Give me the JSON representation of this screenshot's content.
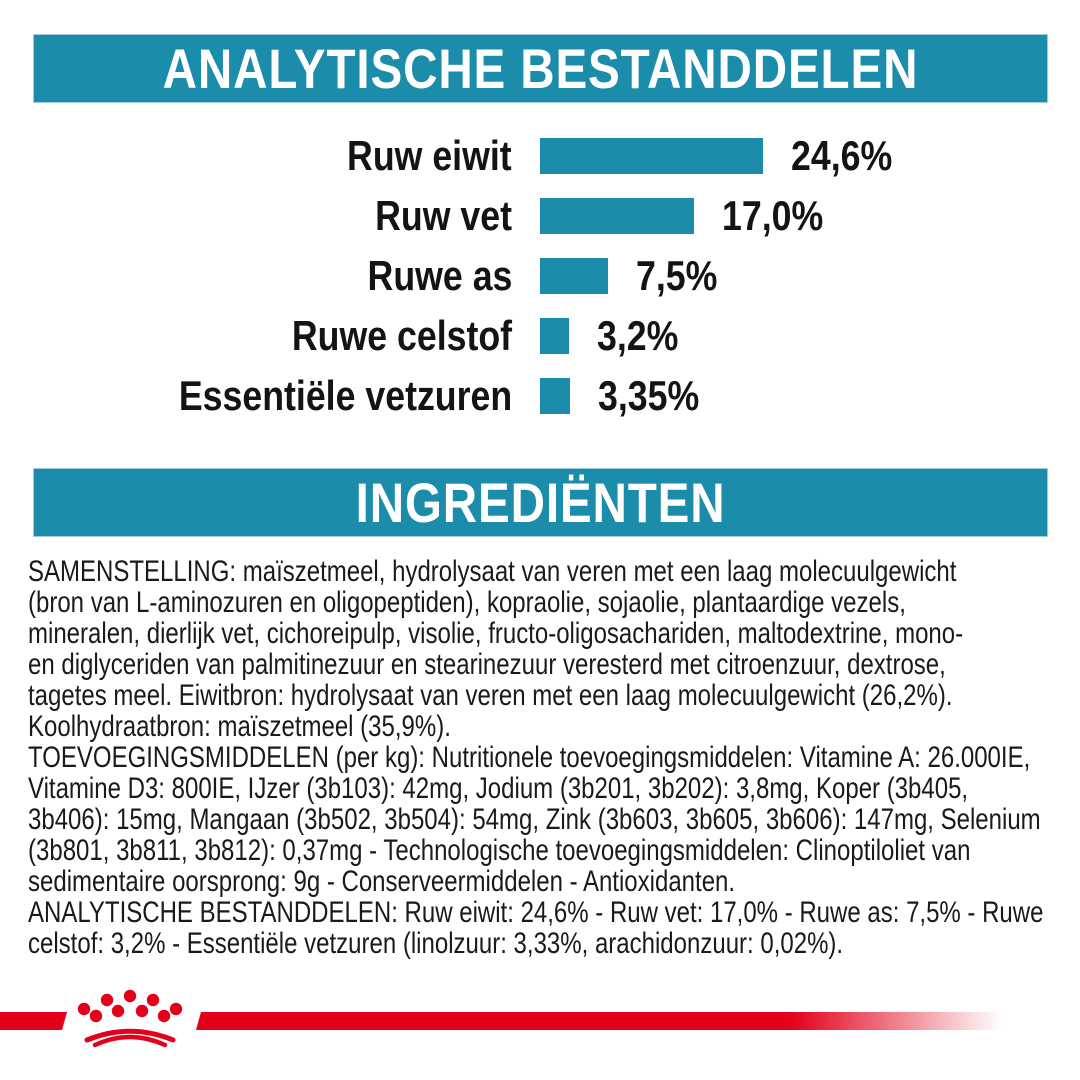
{
  "banners": {
    "analytical": "ANALYTISCHE BESTANDDELEN",
    "ingredients": "INGREDIËNTEN"
  },
  "chart_data": {
    "type": "bar",
    "orientation": "horizontal",
    "title": "ANALYTISCHE BESTANDDELEN",
    "categories": [
      "Ruw eiwit",
      "Ruw vet",
      "Ruwe as",
      "Ruwe celstof",
      "Essentiële vetzuren"
    ],
    "values": [
      24.6,
      17.0,
      7.5,
      3.2,
      3.35
    ],
    "value_labels": [
      "24,6%",
      "17,0%",
      "7,5%",
      "3,2%",
      "3,35%"
    ],
    "xlim": [
      0,
      25
    ],
    "grid": false,
    "bar_color": "#1b8caa"
  },
  "chart": {
    "rows": [
      {
        "label": "Ruw eiwit",
        "value": "24,6%",
        "pct": 24.6
      },
      {
        "label": "Ruw vet",
        "value": "17,0%",
        "pct": 17.0
      },
      {
        "label": "Ruwe as",
        "value": "7,5%",
        "pct": 7.5
      },
      {
        "label": "Ruwe celstof",
        "value": "3,2%",
        "pct": 3.2
      },
      {
        "label": "Essentiële vetzuren",
        "value": "3,35%",
        "pct": 3.35
      }
    ]
  },
  "ingredients": {
    "samenstelling": "SAMENSTELLING: maïszetmeel, hydrolysaat van veren met een laag molecuulgewicht\n(bron van L-aminozuren en oligopeptiden), kopraolie, sojaolie, plantaardige vezels,\nmineralen, dierlijk vet, cichoreipulp, visolie, fructo-oligosachariden, maltodextrine, mono-\nen diglyceriden van palmitinezuur en stearinezuur veresterd met citroenzuur, dextrose,\ntagetes meel. Eiwitbron: hydrolysaat van veren met een laag molecuulgewicht (26,2%).\nKoolhydraatbron: maïszetmeel (35,9%).",
    "toevoegingsmiddelen": "TOEVOEGINGSMIDDELEN (per kg): Nutritionele toevoegingsmiddelen: Vitamine A: 26.000IE,\nVitamine D3: 800IE, IJzer (3b103): 42mg, Jodium (3b201, 3b202): 3,8mg, Koper (3b405,\n3b406): 15mg, Mangaan (3b502, 3b504): 54mg, Zink (3b603, 3b605, 3b606): 147mg, Selenium\n(3b801, 3b811, 3b812): 0,37mg - Technologische toevoegingsmiddelen: Clinoptiloliet van\nsedimentaire oorsprong: 9g - Conserveermiddelen - Antioxidanten.",
    "analytisch": "ANALYTISCHE BESTANDDELEN: Ruw eiwit: 24,6% - Ruw vet: 17,0% - Ruwe as: 7,5% - Ruwe\ncelstof: 3,2% - Essentiële vetzuren (linolzuur: 3,33%, arachidonzuur: 0,02%)."
  },
  "logo": {
    "name": "royal-canin-crown",
    "color": "#e2001a"
  },
  "colors": {
    "teal": "#1b8caa",
    "red": "#e2001a",
    "text": "#1a1a1a",
    "background": "#ffffff"
  }
}
